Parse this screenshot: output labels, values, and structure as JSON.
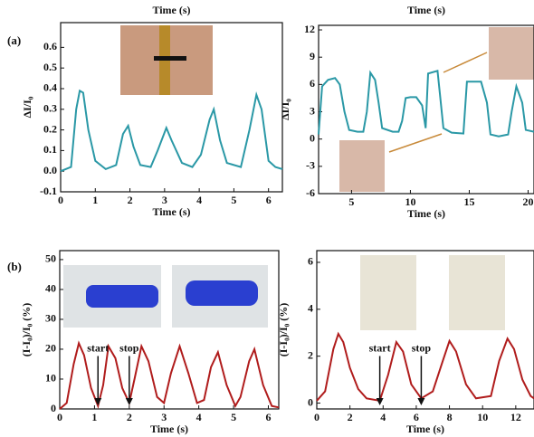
{
  "labels": [
    "(a)",
    "(b)"
  ],
  "chart_data": [
    {
      "type": "line",
      "title": "Time (s)",
      "xlabel": "Time (s)",
      "ylabel": "ΔI/I₀",
      "color": "#2a98a6",
      "xlim": [
        0,
        6.4
      ],
      "ylim": [
        -0.1,
        0.72
      ],
      "xticks": [
        0,
        1,
        2,
        3,
        4,
        5,
        6
      ],
      "yticks": [
        -0.1,
        {
          "value": 0,
          "label": "0.0"
        },
        0.1,
        0.2,
        0.3,
        0.4,
        0.5,
        0.6
      ],
      "x": [
        0,
        0.3,
        0.45,
        0.55,
        0.65,
        0.8,
        1.0,
        1.3,
        1.6,
        1.8,
        1.95,
        2.1,
        2.3,
        2.6,
        2.8,
        3.05,
        3.2,
        3.5,
        3.8,
        4.05,
        4.3,
        4.42,
        4.6,
        4.8,
        5.2,
        5.45,
        5.65,
        5.8,
        6.0,
        6.2,
        6.4
      ],
      "values": [
        0.0,
        0.02,
        0.3,
        0.39,
        0.38,
        0.2,
        0.05,
        0.01,
        0.03,
        0.18,
        0.22,
        0.12,
        0.03,
        0.02,
        0.1,
        0.21,
        0.15,
        0.04,
        0.02,
        0.08,
        0.25,
        0.3,
        0.15,
        0.04,
        0.02,
        0.2,
        0.37,
        0.3,
        0.05,
        0.02,
        0.01
      ]
    },
    {
      "type": "line",
      "title": "Time (s)",
      "xlabel": "Time (s)",
      "ylabel": "ΔI/I₀",
      "color": "#2a98a6",
      "xlim": [
        2.2,
        20.5
      ],
      "ylim": [
        -6,
        12.5
      ],
      "xticks": [
        5,
        10,
        15,
        20
      ],
      "yticks": [
        -6,
        -3,
        0,
        3,
        6,
        9,
        12
      ],
      "x": [
        2.2,
        2.5,
        3,
        3.6,
        4,
        4.4,
        4.8,
        5.5,
        6,
        6.3,
        6.6,
        7,
        7.3,
        7.6,
        8.5,
        9,
        9.3,
        9.6,
        10,
        10.5,
        11,
        11.3,
        11.5,
        12.3,
        12.5,
        12.8,
        13.5,
        14.5,
        14.8,
        16,
        16.5,
        16.8,
        17.5,
        18.3,
        18.6,
        19,
        19.5,
        19.8,
        20.5
      ],
      "values": [
        0.5,
        5.8,
        6.5,
        6.7,
        6,
        3,
        1,
        0.8,
        0.8,
        3,
        7.3,
        6.5,
        4,
        1.2,
        0.8,
        0.8,
        2,
        4.5,
        4.6,
        4.6,
        3.7,
        1.2,
        7.2,
        7.5,
        5,
        1.2,
        0.7,
        0.6,
        6.3,
        6.3,
        4,
        0.5,
        0.3,
        0.5,
        3,
        5.8,
        4,
        1,
        0.8
      ]
    },
    {
      "type": "line",
      "xlabel": "Time (s)",
      "ylabel": "(I-I₀)/I₀ (%)",
      "color": "#b01c1c",
      "xlim": [
        0,
        6.3
      ],
      "ylim": [
        0,
        53
      ],
      "xticks": [
        0,
        1,
        2,
        3,
        4,
        5,
        6
      ],
      "yticks": [
        0,
        10,
        20,
        30,
        40,
        50
      ],
      "x": [
        0,
        0.2,
        0.4,
        0.55,
        0.7,
        0.9,
        1.1,
        1.25,
        1.4,
        1.6,
        1.8,
        2.0,
        2.15,
        2.35,
        2.55,
        2.8,
        3.0,
        3.2,
        3.45,
        3.7,
        3.95,
        4.15,
        4.35,
        4.55,
        4.8,
        5.05,
        5.2,
        5.45,
        5.6,
        5.85,
        6.1,
        6.3
      ],
      "values": [
        0,
        2,
        15,
        22,
        18,
        7,
        1,
        8,
        21,
        17,
        7,
        2,
        10,
        21,
        16,
        4,
        2,
        12,
        21,
        12,
        2,
        3,
        14,
        19,
        8,
        1,
        4,
        16,
        20,
        8,
        1,
        0.5
      ],
      "annotations": [
        {
          "text": "start",
          "x": 1.1
        },
        {
          "text": "stop",
          "x": 2.0
        }
      ]
    },
    {
      "type": "line",
      "xlabel": "Time (s)",
      "ylabel": "(I-I₀)/I₀ (%)",
      "color": "#b01c1c",
      "xlim": [
        0,
        13.1
      ],
      "ylim": [
        -0.25,
        6.5
      ],
      "xticks": [
        0,
        2,
        4,
        6,
        8,
        10,
        12
      ],
      "yticks": [
        0,
        2,
        4,
        6
      ],
      "x": [
        0,
        0.5,
        1,
        1.3,
        1.6,
        2,
        2.5,
        3,
        3.8,
        4.3,
        4.8,
        5.2,
        5.7,
        6.3,
        7,
        7.6,
        8,
        8.4,
        9,
        9.6,
        10.5,
        11,
        11.5,
        11.9,
        12.4,
        12.9,
        13.1
      ],
      "values": [
        0.1,
        0.5,
        2.3,
        2.95,
        2.6,
        1.5,
        0.6,
        0.2,
        0.1,
        1.2,
        2.6,
        2.2,
        0.8,
        0.2,
        0.5,
        1.8,
        2.65,
        2.2,
        0.8,
        0.2,
        0.3,
        1.8,
        2.75,
        2.3,
        1,
        0.3,
        0.2
      ],
      "annotations": [
        {
          "text": "start",
          "x": 3.8
        },
        {
          "text": "stop",
          "x": 6.3
        }
      ]
    }
  ]
}
